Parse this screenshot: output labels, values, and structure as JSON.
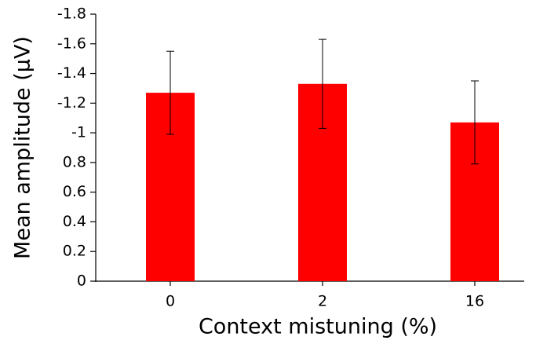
{
  "chart_data": {
    "type": "bar",
    "x_label": "Context mistuning (%)",
    "y_label": "Mean amplitude (μV)",
    "categories": [
      "0",
      "2",
      "16"
    ],
    "values": [
      -1.27,
      -1.33,
      -1.07
    ],
    "errors": [
      0.28,
      0.3,
      0.28
    ],
    "color": "#ff0000",
    "ylim": [
      0,
      -1.8
    ],
    "yticks": [
      0,
      {
        "value": -0.2,
        "label": "0.2"
      },
      {
        "value": -0.4,
        "label": "0.4"
      },
      {
        "value": -0.6,
        "label": "0.6"
      },
      {
        "value": -0.8,
        "label": "0.8"
      },
      -1,
      -1.2,
      -1.4,
      -1.6,
      -1.8
    ]
  }
}
